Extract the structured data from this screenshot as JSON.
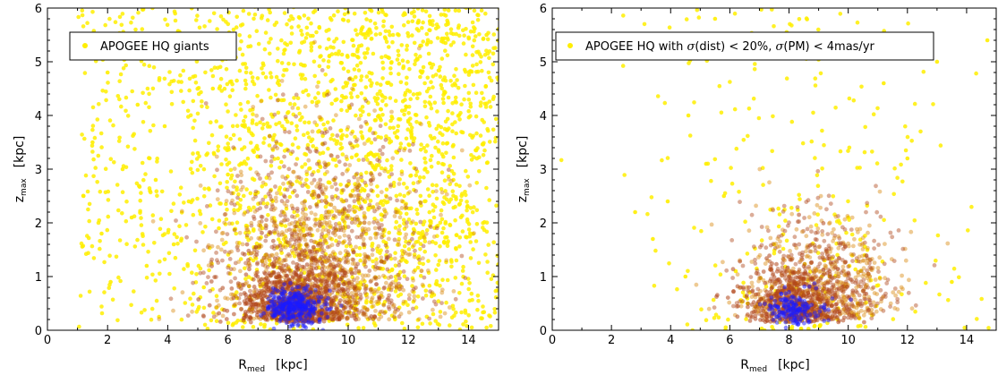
{
  "chart_data": [
    {
      "type": "scatter",
      "legend_label": "APOGEE HQ giants",
      "legend_placement": "top-left",
      "xlim": [
        0,
        15
      ],
      "ylim": [
        0,
        6
      ],
      "xticks": [
        "0",
        "2",
        "4",
        "6",
        "8",
        "10",
        "12",
        "14"
      ],
      "yticks": [
        "0",
        "1",
        "2",
        "3",
        "4",
        "5",
        "6"
      ],
      "xlabel": {
        "main": "R",
        "sub": "med",
        "unit": "[kpc]"
      },
      "ylabel": {
        "main": "z",
        "sub": "max",
        "unit": "[kpc]"
      },
      "grid": false,
      "point_color": "#ffee00",
      "density_colors": [
        "#ffee00",
        "#d98a10",
        "#b0461a",
        "#1a1aff"
      ],
      "density_peak": {
        "x": 8.2,
        "y": 0.45
      },
      "series": [
        {
          "values": [
            {
              "x": 1.2,
              "y": 2.5
            },
            {
              "x": 1.5,
              "y": 3.5
            },
            {
              "x": 1.8,
              "y": 1.8
            },
            {
              "x": 2.0,
              "y": 4.8
            },
            {
              "x": 2.1,
              "y": 0.9
            },
            {
              "x": 2.5,
              "y": 3.0
            },
            {
              "x": 2.8,
              "y": 2.1
            },
            {
              "x": 3.0,
              "y": 4.2
            },
            {
              "x": 3.3,
              "y": 1.2
            },
            {
              "x": 3.6,
              "y": 2.8
            },
            {
              "x": 3.9,
              "y": 3.8
            },
            {
              "x": 4.2,
              "y": 1.6
            },
            {
              "x": 4.4,
              "y": 5.3
            },
            {
              "x": 4.7,
              "y": 2.4
            },
            {
              "x": 5.0,
              "y": 3.3
            },
            {
              "x": 5.2,
              "y": 0.8
            },
            {
              "x": 5.5,
              "y": 4.5
            },
            {
              "x": 5.7,
              "y": 1.9
            },
            {
              "x": 6.0,
              "y": 2.9
            },
            {
              "x": 6.3,
              "y": 0.6
            },
            {
              "x": 8.0,
              "y": 0.4
            },
            {
              "x": 8.5,
              "y": 0.6
            },
            {
              "x": 9.0,
              "y": 1.5
            },
            {
              "x": 10.2,
              "y": 2.3
            },
            {
              "x": 11.0,
              "y": 3.6
            },
            {
              "x": 12.3,
              "y": 4.4
            },
            {
              "x": 13.5,
              "y": 2.8
            },
            {
              "x": 14.6,
              "y": 5.5
            }
          ]
        }
      ]
    },
    {
      "type": "scatter",
      "legend_label": {
        "prefix": "APOGEE HQ with ",
        "sigma1": "σ",
        "part1": "(dist) < 20%,  ",
        "sigma2": "σ",
        "part2": "(PM) < 4mas/yr"
      },
      "legend_placement": "top-left",
      "xlim": [
        0,
        15
      ],
      "ylim": [
        0,
        6
      ],
      "xticks": [
        "0",
        "2",
        "4",
        "6",
        "8",
        "10",
        "12",
        "14"
      ],
      "yticks": [
        "0",
        "1",
        "2",
        "3",
        "4",
        "5",
        "6"
      ],
      "xlabel": {
        "main": "R",
        "sub": "med",
        "unit": "[kpc]"
      },
      "ylabel": {
        "main": "z",
        "sub": "max",
        "unit": "[kpc]"
      },
      "grid": false,
      "point_color": "#ffee00",
      "density_colors": [
        "#ffee00",
        "#d98a10",
        "#b0461a",
        "#1a1aff"
      ],
      "density_peak": {
        "x": 8.2,
        "y": 0.4
      },
      "series": [
        {
          "values": [
            {
              "x": 2.8,
              "y": 2.2
            },
            {
              "x": 3.4,
              "y": 1.7
            },
            {
              "x": 3.9,
              "y": 2.4
            },
            {
              "x": 4.5,
              "y": 1.0
            },
            {
              "x": 4.6,
              "y": 4.0
            },
            {
              "x": 5.2,
              "y": 3.1
            },
            {
              "x": 5.5,
              "y": 5.8
            },
            {
              "x": 5.8,
              "y": 2.5
            },
            {
              "x": 6.2,
              "y": 1.1
            },
            {
              "x": 6.6,
              "y": 0.5
            },
            {
              "x": 7.5,
              "y": 1.6
            },
            {
              "x": 8.1,
              "y": 0.4
            },
            {
              "x": 8.5,
              "y": 0.5
            },
            {
              "x": 9.2,
              "y": 1.3
            },
            {
              "x": 10.0,
              "y": 2.1
            },
            {
              "x": 11.2,
              "y": 4.6
            },
            {
              "x": 12.0,
              "y": 3.2
            },
            {
              "x": 13.0,
              "y": 5.0
            },
            {
              "x": 13.5,
              "y": 0.9
            },
            {
              "x": 14.7,
              "y": 5.4
            }
          ]
        }
      ]
    }
  ]
}
